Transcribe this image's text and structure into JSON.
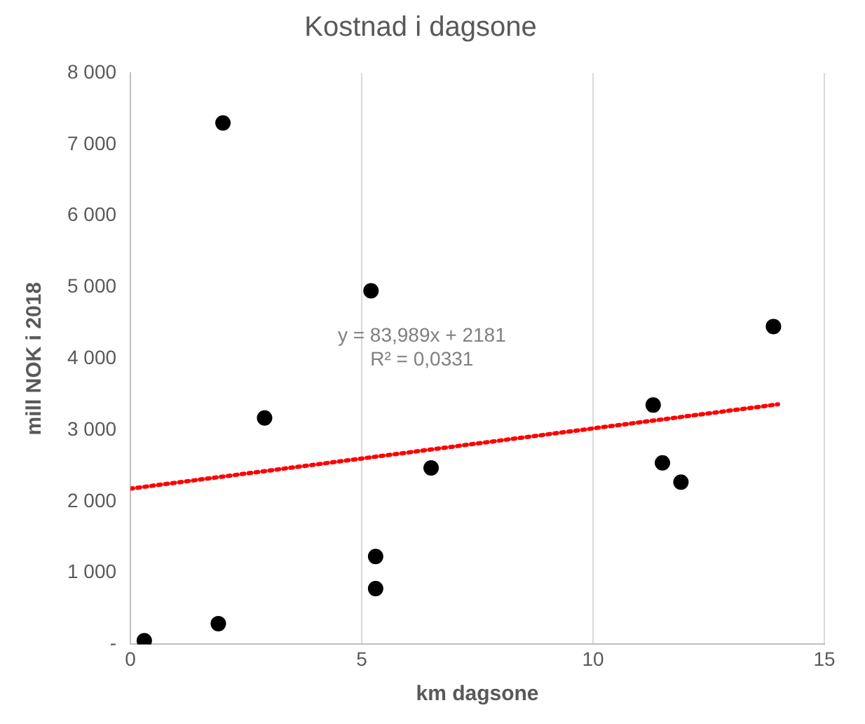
{
  "chart_data": {
    "type": "scatter",
    "title": "Kostnad i dagsone",
    "xlabel": "km dagsone",
    "ylabel": "mill NOK i 2018",
    "x": [
      0.3,
      1.9,
      2.0,
      2.9,
      5.2,
      5.3,
      5.3,
      6.5,
      11.3,
      11.5,
      11.9,
      13.9
    ],
    "series": [
      {
        "type": "scatter",
        "color": "#000000",
        "marker": "circle",
        "values": [
          50,
          290,
          7300,
          3170,
          4950,
          1230,
          780,
          2470,
          3350,
          2540,
          2270,
          4450
        ]
      },
      {
        "type": "line",
        "color": "#ff0000",
        "line_style": "dotted",
        "marker": "none",
        "x": [
          0,
          14
        ],
        "values": [
          2180,
          3360
        ]
      }
    ],
    "xlim": [
      0,
      15
    ],
    "xticks": [
      0,
      5,
      10,
      15
    ],
    "ylim": [
      0,
      8000
    ],
    "yticks": [
      {
        "value": 0,
        "label": "-"
      },
      {
        "value": 1000,
        "label": "1 000"
      },
      {
        "value": 2000,
        "label": "2 000"
      },
      {
        "value": 3000,
        "label": "3 000"
      },
      {
        "value": 4000,
        "label": "4 000"
      },
      {
        "value": 5000,
        "label": "5 000"
      },
      {
        "value": 6000,
        "label": "6 000"
      },
      {
        "value": 7000,
        "label": "7 000"
      },
      {
        "value": 8000,
        "label": "8 000"
      }
    ],
    "grid": "x",
    "annotations": [
      "y = 83,989x + 2181",
      "R² = 0,0331"
    ]
  }
}
